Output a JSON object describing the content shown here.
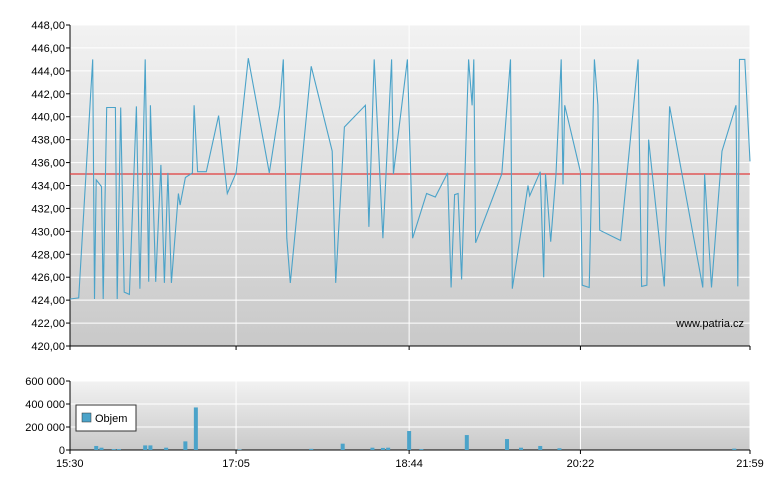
{
  "chart_data": [
    {
      "type": "line",
      "color": "#4ba3c9",
      "annotation": "www.patria.cz",
      "reference_line": 435,
      "reference_color": "#e03c3c",
      "xlim": [
        "15:30",
        "21:59"
      ],
      "ylim": [
        420,
        448
      ],
      "yticks": [
        {
          "value": 420,
          "label": "420,00"
        },
        {
          "value": 422,
          "label": "422,00"
        },
        {
          "value": 424,
          "label": "424,00"
        },
        {
          "value": 426,
          "label": "426,00"
        },
        {
          "value": 428,
          "label": "428,00"
        },
        {
          "value": 430,
          "label": "430,00"
        },
        {
          "value": 432,
          "label": "432,00"
        },
        {
          "value": 434,
          "label": "434,00"
        },
        {
          "value": 436,
          "label": "436,00"
        },
        {
          "value": 438,
          "label": "438,00"
        },
        {
          "value": 440,
          "label": "440,00"
        },
        {
          "value": 442,
          "label": "442,00"
        },
        {
          "value": 444,
          "label": "444,00"
        },
        {
          "value": 446,
          "label": "446,00"
        },
        {
          "value": 448,
          "label": "448,00"
        }
      ],
      "grid": true,
      "x": [
        "15:30",
        "15:35",
        "15:43",
        "15:44",
        "15:45",
        "15:48",
        "15:49",
        "15:51",
        "15:56",
        "15:57",
        "15:59",
        "16:01",
        "16:04",
        "16:08",
        "16:10",
        "16:13",
        "16:15",
        "16:16",
        "16:19",
        "16:22",
        "16:24",
        "16:26",
        "16:28",
        "16:32",
        "16:33",
        "16:36",
        "16:40",
        "16:41",
        "16:43",
        "16:48",
        "16:55",
        "17:00",
        "17:05",
        "17:12",
        "17:24",
        "17:30",
        "17:32",
        "17:34",
        "17:36",
        "17:48",
        "18:00",
        "18:02",
        "18:07",
        "18:19",
        "18:21",
        "18:24",
        "18:29",
        "18:34",
        "18:35",
        "18:43",
        "18:46",
        "18:54",
        "18:59",
        "19:06",
        "19:08",
        "19:10",
        "19:12",
        "19:14",
        "19:18",
        "19:20",
        "19:21",
        "19:22",
        "19:37",
        "19:42",
        "19:43",
        "19:52",
        "19:53",
        "19:59",
        "20:01",
        "20:02",
        "20:05",
        "20:08",
        "20:11",
        "20:12",
        "20:13",
        "20:22",
        "20:23",
        "20:27",
        "20:30",
        "20:32",
        "20:33",
        "20:45",
        "20:55",
        "20:57",
        "21:00",
        "21:01",
        "21:10",
        "21:13",
        "21:32",
        "21:33",
        "21:37",
        "21:43",
        "21:51",
        "21:52",
        "21:53",
        "21:56",
        "21:59"
      ],
      "values": [
        424.1,
        424.2,
        445.0,
        424.1,
        434.5,
        433.9,
        424.1,
        440.8,
        440.8,
        424.1,
        440.8,
        424.7,
        424.5,
        440.9,
        425.0,
        445.0,
        425.6,
        441.0,
        425.6,
        435.8,
        425.5,
        435.1,
        425.5,
        433.3,
        432.3,
        434.7,
        435.1,
        441.0,
        435.2,
        435.2,
        440.1,
        433.3,
        435.1,
        445.1,
        435.1,
        441.0,
        445.0,
        429.4,
        425.5,
        444.4,
        437.0,
        425.5,
        439.1,
        441.0,
        430.4,
        445.0,
        429.4,
        445.0,
        435.0,
        445.0,
        429.4,
        433.3,
        433.0,
        435.1,
        425.1,
        433.2,
        433.3,
        425.8,
        445.0,
        441.0,
        445.0,
        429.0,
        435.0,
        445.0,
        425.0,
        434.0,
        433.1,
        435.2,
        426.0,
        435.0,
        429.1,
        435.0,
        445.0,
        434.1,
        441.0,
        435.2,
        425.3,
        425.1,
        445.0,
        441.0,
        430.1,
        429.2,
        445.0,
        425.2,
        425.3,
        438.0,
        425.2,
        440.9,
        425.1,
        435.0,
        425.1,
        437.0,
        441.0,
        425.2,
        445.0,
        445.0,
        436.1
      ]
    },
    {
      "type": "bar",
      "legend": "upper-left",
      "xlim": [
        "15:30",
        "21:59"
      ],
      "xticks": [
        "15:30",
        "17:05",
        "18:44",
        "20:22",
        "21:59"
      ],
      "ylim": [
        0,
        600000
      ],
      "yticks": [
        0,
        {
          "value": 200000,
          "label": "200 000"
        },
        {
          "value": 400000,
          "label": "400 000"
        },
        {
          "value": 600000,
          "label": "600 000"
        }
      ],
      "grid": true,
      "x": [
        "15:45",
        "15:48",
        "15:55",
        "15:58",
        "16:13",
        "16:16",
        "16:25",
        "16:36",
        "16:42",
        "17:07",
        "17:48",
        "18:06",
        "18:23",
        "18:29",
        "18:32",
        "18:44",
        "18:51",
        "19:17",
        "19:40",
        "19:48",
        "19:59",
        "20:10",
        "21:50"
      ],
      "series": [
        {
          "name": "Objem",
          "color": "#4ba3c9",
          "values": [
            35000,
            20000,
            8000,
            8000,
            40000,
            40000,
            20000,
            75000,
            370000,
            5000,
            10000,
            55000,
            20000,
            18000,
            20000,
            165000,
            8000,
            130000,
            95000,
            20000,
            35000,
            15000,
            12000
          ]
        }
      ]
    }
  ]
}
